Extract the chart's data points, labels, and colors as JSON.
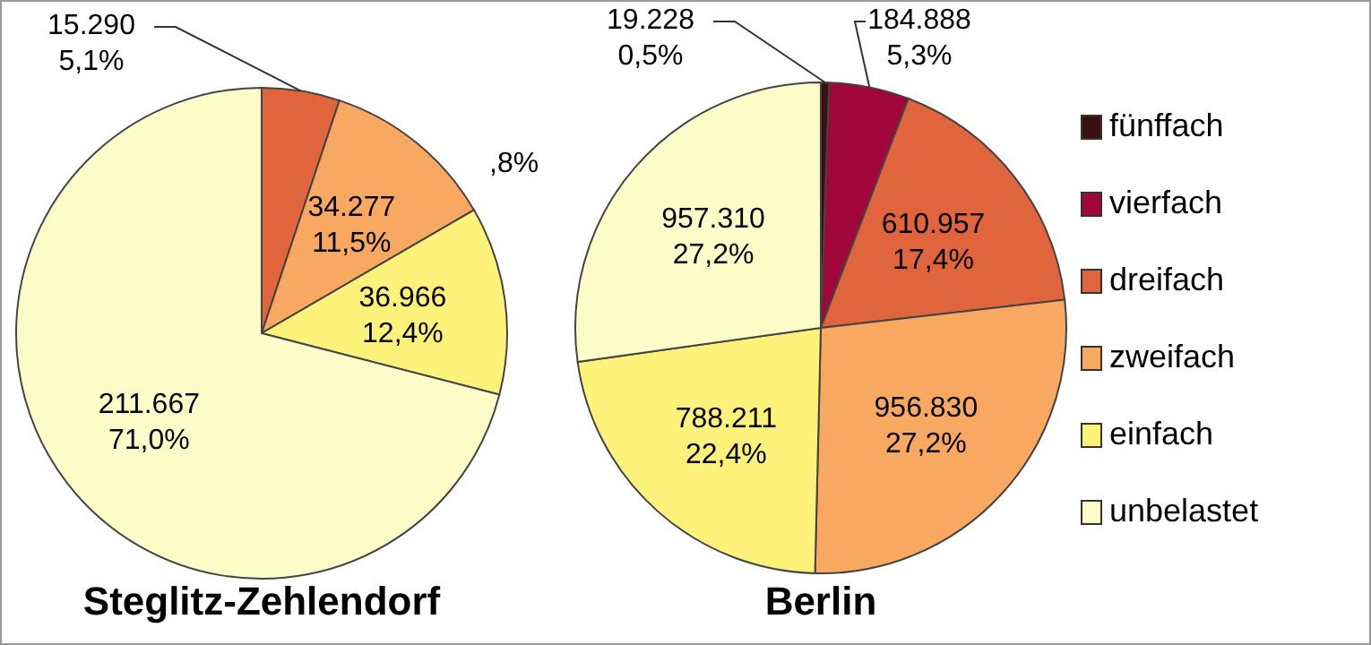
{
  "chart_data": [
    {
      "type": "pie",
      "title": "Steglitz-Zehlendorf",
      "categories": [
        null,
        null,
        null,
        null
      ],
      "values": [
        15290,
        34277,
        36966,
        211667
      ],
      "colors": [
        "#e0643c",
        "#f8a860",
        "#fff27a",
        "#fcfcc8"
      ],
      "value_labels": [
        "15.290\n5,1%",
        "34.277\n11,5%",
        "36.966\n12,4%",
        "211.667\n71,0%"
      ],
      "legend": false,
      "annotations": [
        ",8%"
      ]
    },
    {
      "type": "pie",
      "title": "Berlin",
      "categories": [
        "fünffach",
        "vierfach",
        "dreifach",
        "zweifach",
        "einfach",
        "unbelastet"
      ],
      "values": [
        19228,
        184888,
        610957,
        956830,
        788211,
        957310
      ],
      "colors": [
        "#3a1010",
        "#a0063a",
        "#e0643c",
        "#f8a860",
        "#fff27a",
        "#fcfcc8"
      ],
      "value_labels": [
        "19.228\n0,5%",
        "184.888\n5,3%",
        "610.957\n17,4%",
        "956.830\n27,2%",
        "788.211\n22,4%",
        "957.310\n27,2%"
      ],
      "legend": "right"
    }
  ]
}
